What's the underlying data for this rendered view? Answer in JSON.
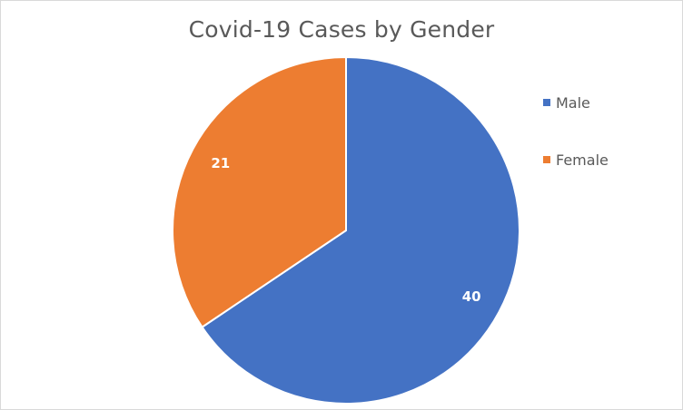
{
  "chart_data": {
    "type": "pie",
    "title": "Covid-19 Cases  by Gender",
    "categories": [
      "Male",
      "Female"
    ],
    "values": [
      40,
      21
    ],
    "colors": [
      "#4472c4",
      "#ed7d31"
    ],
    "data_labels": [
      "40",
      "21"
    ],
    "start_angle": "12 o'clock, clockwise",
    "legend": "right",
    "slice_border_color": "#ffffff"
  }
}
